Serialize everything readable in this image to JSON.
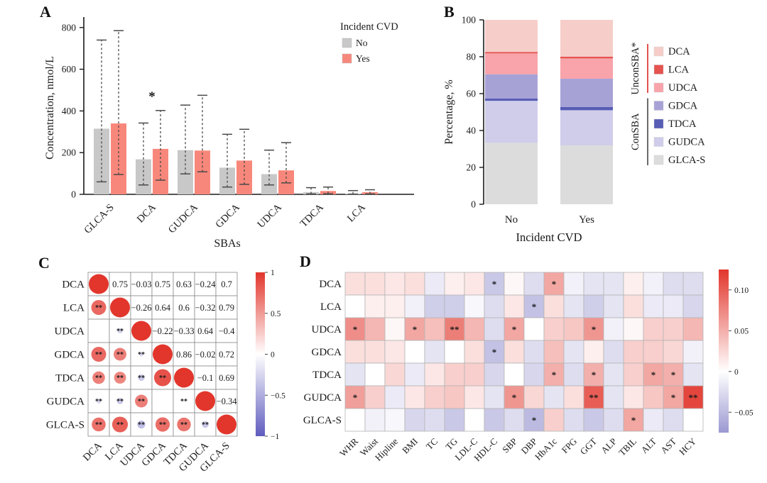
{
  "panel_labels": {
    "a": "A",
    "b": "B",
    "c": "C",
    "d": "D"
  },
  "chart_data": [
    {
      "id": "A",
      "type": "bar",
      "panel_label": "A",
      "ylabel": "Concentration, nmol/L",
      "xlabel": "SBAs",
      "ylim": [
        0,
        830
      ],
      "yticks": [
        0,
        200,
        400,
        600,
        800
      ],
      "categories": [
        "GLCA-S",
        "DCA",
        "GUDCA",
        "GDCA",
        "UDCA",
        "TDCA",
        "LCA"
      ],
      "legend": {
        "title": "Incident CVD",
        "items": [
          {
            "label": "No",
            "color": "#C8C8C8"
          },
          {
            "label": "Yes",
            "color": "#F8877B"
          }
        ]
      },
      "series": [
        {
          "name": "No",
          "color": "#C8C8C8",
          "values": [
            315,
            168,
            212,
            128,
            97,
            10,
            4
          ],
          "whisker_low": [
            60,
            45,
            98,
            35,
            45,
            2,
            1
          ],
          "whisker_high": [
            740,
            342,
            428,
            288,
            212,
            32,
            18
          ]
        },
        {
          "name": "Yes",
          "color": "#F8877B",
          "values": [
            340,
            218,
            210,
            162,
            115,
            16,
            10
          ],
          "whisker_low": [
            95,
            68,
            108,
            48,
            55,
            3,
            2
          ],
          "whisker_high": [
            785,
            402,
            475,
            312,
            248,
            35,
            22
          ]
        }
      ],
      "significance": [
        "",
        "*",
        "",
        "",
        "",
        "",
        ""
      ]
    },
    {
      "id": "B",
      "type": "stacked-bar",
      "panel_label": "B",
      "ylabel": "Percentage, %",
      "xlabel": "Incident CVD",
      "ylim": [
        0,
        100
      ],
      "yticks": [
        0,
        20,
        40,
        60,
        80,
        100
      ],
      "categories": [
        "No",
        "Yes"
      ],
      "stack_order_bottom_to_top": [
        "GLCA-S",
        "GUDCA",
        "TDCA",
        "GDCA",
        "UDCA",
        "LCA",
        "DCA"
      ],
      "series": [
        {
          "name": "GLCA-S",
          "color": "#DCDCDC",
          "values": [
            33.3,
            31.9
          ]
        },
        {
          "name": "GUDCA",
          "color": "#CFCDEA",
          "values": [
            22.8,
            19.1
          ]
        },
        {
          "name": "TDCA",
          "color": "#575CB5",
          "values": [
            1.3,
            1.7
          ]
        },
        {
          "name": "GDCA",
          "color": "#A7A2D6",
          "values": [
            13.1,
            15.4
          ]
        },
        {
          "name": "UDCA",
          "color": "#F9A3AA",
          "values": [
            11.3,
            11.0
          ]
        },
        {
          "name": "LCA",
          "color": "#E4534F",
          "values": [
            0.8,
            0.9
          ]
        },
        {
          "name": "DCA",
          "color": "#F6CDC9",
          "values": [
            17.4,
            20.0
          ]
        }
      ],
      "legend": {
        "groups": [
          {
            "label": "UnconSBA*",
            "line_color": "#E4534F",
            "items": [
              "DCA",
              "LCA",
              "UDCA"
            ]
          },
          {
            "label": "ConSBA",
            "line_color": "#6b6b6b",
            "items": [
              "GDCA",
              "TDCA",
              "GUDCA",
              "GLCA-S"
            ]
          }
        ]
      }
    },
    {
      "id": "C",
      "type": "heatmap",
      "subtype": "correlation-matrix",
      "panel_label": "C",
      "variables": [
        "DCA",
        "LCA",
        "UDCA",
        "GDCA",
        "TDCA",
        "GUDCA",
        "GLCA-S"
      ],
      "values": [
        [
          1,
          0.75,
          -0.03,
          0.75,
          0.63,
          -0.24,
          0.7
        ],
        [
          0.75,
          1,
          -0.26,
          0.64,
          0.6,
          -0.32,
          0.79
        ],
        [
          -0.03,
          -0.26,
          1,
          -0.22,
          -0.33,
          0.64,
          -0.4
        ],
        [
          0.75,
          0.64,
          -0.22,
          1,
          0.86,
          -0.02,
          0.72
        ],
        [
          0.63,
          0.6,
          -0.33,
          0.86,
          1,
          -0.1,
          0.69
        ],
        [
          -0.24,
          -0.32,
          0.64,
          -0.02,
          -0.1,
          1,
          -0.34
        ],
        [
          0.7,
          0.79,
          -0.4,
          0.72,
          0.69,
          -0.34,
          1
        ]
      ],
      "sig_marker": "**",
      "not_significant_pairs": [
        [
          2,
          0
        ],
        [
          5,
          3
        ]
      ],
      "colorbar": {
        "ticks": [
          1,
          0.5,
          0,
          -0.5,
          -1
        ],
        "tick_labels": [
          "1",
          "0.5",
          "0",
          "−0.5",
          "−1"
        ],
        "max_color": "#E2362C",
        "min_color": "#5F5CBE"
      }
    },
    {
      "id": "D",
      "type": "heatmap",
      "panel_label": "D",
      "rows": [
        "DCA",
        "LCA",
        "UDCA",
        "GDCA",
        "TDCA",
        "GUDCA",
        "GLCA-S"
      ],
      "columns": [
        "WHR",
        "Waist",
        "Hipline",
        "BMI",
        "TC",
        "TG",
        "LDL-C",
        "HDL-C",
        "SBP",
        "DBP",
        "HbA1c",
        "FPG",
        "GGT",
        "ALP",
        "TBIL",
        "ALT",
        "AST",
        "HCY"
      ],
      "values": [
        [
          0.02,
          0.02,
          0.015,
          0.02,
          -0.015,
          0.01,
          0.015,
          -0.04,
          0.005,
          -0.025,
          0.055,
          -0.01,
          -0.02,
          -0.02,
          0.01,
          -0.01,
          -0.025,
          -0.025
        ],
        [
          0.0,
          0.01,
          0.01,
          -0.01,
          -0.035,
          -0.035,
          -0.005,
          -0.025,
          0.015,
          -0.045,
          0.02,
          -0.02,
          -0.035,
          -0.02,
          0.02,
          -0.015,
          -0.015,
          -0.03
        ],
        [
          0.07,
          0.045,
          0.005,
          0.055,
          0.04,
          0.08,
          0.045,
          -0.025,
          0.055,
          0.0,
          0.03,
          0.035,
          0.065,
          -0.01,
          0.005,
          0.03,
          0.03,
          0.045
        ],
        [
          0.02,
          0.02,
          0.015,
          0.0,
          -0.02,
          0.0,
          0.02,
          -0.045,
          0.02,
          -0.025,
          0.04,
          -0.02,
          0.01,
          -0.025,
          0.03,
          0.03,
          0.025,
          -0.01
        ],
        [
          -0.02,
          0.0,
          0.025,
          -0.015,
          0.015,
          0.03,
          0.03,
          -0.03,
          0.0,
          -0.03,
          0.05,
          -0.025,
          0.05,
          -0.02,
          0.03,
          0.055,
          0.05,
          -0.02
        ],
        [
          0.06,
          0.03,
          -0.015,
          0.015,
          0.03,
          0.035,
          0.015,
          -0.02,
          0.065,
          0.025,
          -0.02,
          0.02,
          0.1,
          -0.02,
          0.015,
          0.035,
          0.055,
          0.115
        ],
        [
          0.0,
          -0.01,
          -0.005,
          -0.03,
          -0.025,
          -0.04,
          0.0,
          -0.04,
          -0.025,
          -0.05,
          0.03,
          -0.025,
          -0.04,
          -0.025,
          0.055,
          -0.015,
          -0.025,
          0.0
        ]
      ],
      "sig": [
        [
          "",
          "",
          "",
          "",
          "",
          "",
          "",
          "*",
          "",
          "",
          "*",
          "",
          "",
          "",
          "",
          "",
          "",
          ""
        ],
        [
          "",
          "",
          "",
          "",
          "",
          "",
          "",
          "",
          "",
          "*",
          "",
          "",
          "",
          "",
          "",
          "",
          "",
          ""
        ],
        [
          "*",
          "",
          "",
          "*",
          "",
          "**",
          "",
          "",
          "*",
          "",
          "",
          "",
          "*",
          "",
          "",
          "",
          "",
          ""
        ],
        [
          "",
          "",
          "",
          "",
          "",
          "",
          "",
          "*",
          "",
          "",
          "",
          "",
          "",
          "",
          "",
          "",
          "",
          ""
        ],
        [
          "",
          "",
          "",
          "",
          "",
          "",
          "",
          "",
          "",
          "",
          "*",
          "",
          "*",
          "",
          "",
          "*",
          "*",
          ""
        ],
        [
          "*",
          "",
          "",
          "",
          "",
          "",
          "",
          "",
          "*",
          "",
          "",
          "",
          "**",
          "",
          "",
          "",
          "*",
          "**"
        ],
        [
          "",
          "",
          "",
          "",
          "",
          "",
          "",
          "",
          "",
          "*",
          "",
          "",
          "",
          "",
          "*",
          "",
          "",
          ""
        ]
      ],
      "colorbar": {
        "domain": [
          -0.075,
          0.125
        ],
        "ticks": [
          0.1,
          0.05,
          0,
          -0.05
        ],
        "tick_labels": [
          "0.10",
          "0.05",
          "0",
          "−0.05"
        ],
        "max_color": "#E2362C",
        "min_color": "#9B98D2"
      }
    }
  ]
}
